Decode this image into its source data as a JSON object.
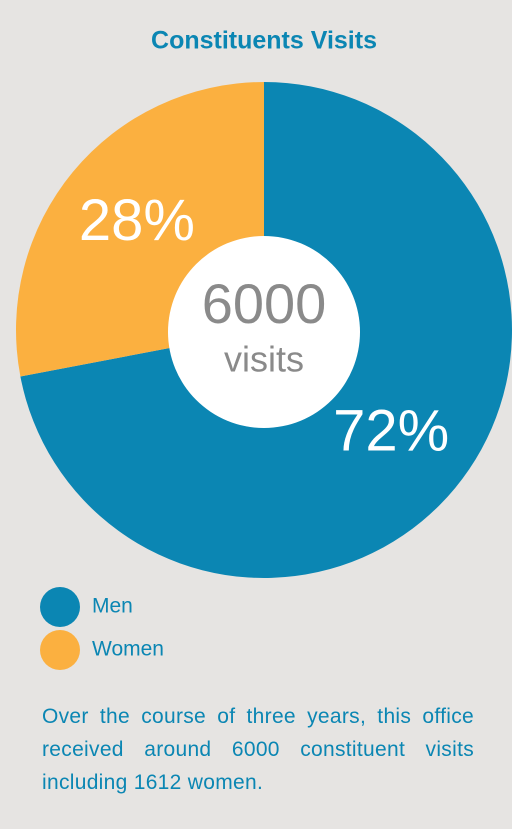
{
  "chart_data": {
    "type": "donut",
    "title": "Constituents Visits",
    "categories": [
      "Men",
      "Women"
    ],
    "values": [
      72,
      28
    ],
    "value_labels": [
      "72%",
      "28%"
    ],
    "colors": [
      "#0b86b3",
      "#fbb040"
    ],
    "center_value": 6000,
    "center_label": "visits",
    "note": "Over the course of three years, this office received around 6000 constituent visits including 1612 women."
  }
}
